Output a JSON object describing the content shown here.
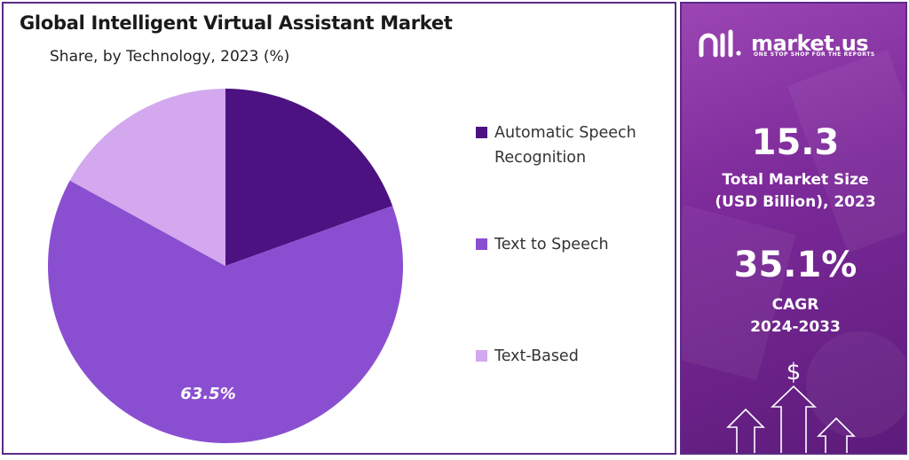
{
  "chart_data": {
    "type": "pie",
    "title": "Global Intelligent Virtual Assistant Market",
    "subtitle": "Share, by Technology, 2023 (%)",
    "categories": [
      "Automatic Speech Recognition",
      "Text to Speech",
      "Text-Based"
    ],
    "values": [
      19.5,
      63.5,
      17.0
    ],
    "colors": [
      "#4c1282",
      "#8a4fd1",
      "#d3a8ee"
    ],
    "data_labels": [
      "",
      "63.5%",
      ""
    ],
    "legend_position": "right"
  },
  "side_panel": {
    "brand_name": "market.us",
    "brand_tagline": "ONE STOP SHOP FOR THE REPORTS",
    "market_size_value": "15.3",
    "market_size_label_line1": "Total Market Size",
    "market_size_label_line2": "(USD Billion), 2023",
    "cagr_value": "35.1%",
    "cagr_label_line1": "CAGR",
    "cagr_label_line2": "2024-2033",
    "currency_symbol": "$"
  }
}
